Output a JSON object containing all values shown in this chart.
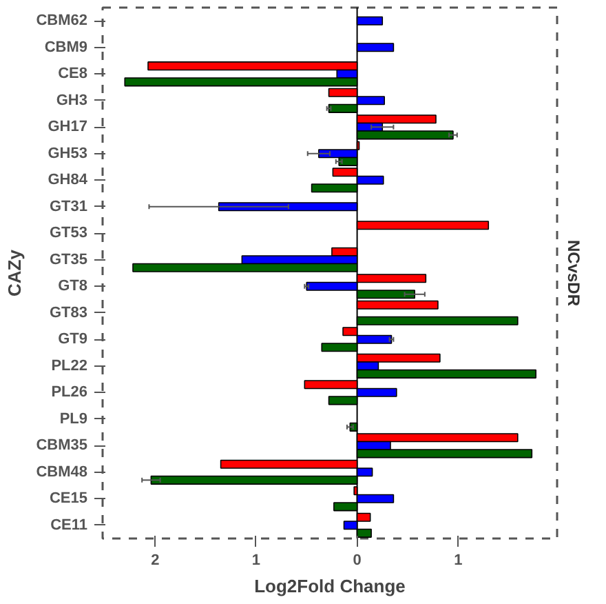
{
  "chart_data": {
    "type": "bar",
    "orientation": "horizontal",
    "ylabel": "CAZy",
    "xlabel": "Log2Fold Change",
    "annotations": [
      "NCvsDR"
    ],
    "categories": [
      "CBM62",
      "CBM9",
      "CE8",
      "GH3",
      "GH17",
      "GH53",
      "GH84",
      "GT31",
      "GT53",
      "GT35",
      "GT8",
      "GT83",
      "GT9",
      "PL22",
      "PL26",
      "PL9",
      "CBM35",
      "CBM48",
      "CE15",
      "CE11"
    ],
    "series": [
      {
        "color": "#ff0000",
        "values": [
          null,
          null,
          -2.07,
          -0.28,
          0.78,
          0.02,
          -0.24,
          null,
          1.3,
          -0.25,
          0.68,
          0.8,
          -0.14,
          0.82,
          -0.52,
          null,
          1.59,
          -1.35,
          -0.03,
          0.13
        ]
      },
      {
        "color": "#0000ff",
        "values": [
          0.25,
          0.36,
          -0.2,
          0.27,
          0.25,
          -0.38,
          0.26,
          -1.37,
          null,
          -1.14,
          -0.5,
          null,
          0.34,
          0.21,
          0.39,
          null,
          0.33,
          0.15,
          0.36,
          -0.13
        ],
        "errors": [
          null,
          null,
          null,
          null,
          0.11,
          0.11,
          null,
          0.69,
          null,
          null,
          0.02,
          null,
          0.02,
          null,
          null,
          null,
          null,
          null,
          null,
          null
        ]
      },
      {
        "color": "#006400",
        "values": [
          null,
          null,
          -2.3,
          -0.28,
          0.95,
          -0.18,
          -0.45,
          null,
          null,
          -2.22,
          0.57,
          1.59,
          -0.35,
          1.77,
          -0.28,
          -0.07,
          1.73,
          -2.04,
          -0.23,
          0.14
        ],
        "errors": [
          null,
          null,
          null,
          0.02,
          0.04,
          0.03,
          null,
          null,
          null,
          null,
          0.1,
          null,
          null,
          null,
          null,
          0.03,
          null,
          0.09,
          null,
          null
        ]
      }
    ],
    "xlim": [
      -2.52,
      1.98
    ],
    "xticks": [
      {
        "value": -2,
        "label": "2"
      },
      {
        "value": -1,
        "label": "1"
      },
      0,
      1
    ],
    "grid": false,
    "ref_lines": [
      {
        "axis": "x",
        "value": 0,
        "color": "#000000"
      }
    ]
  }
}
